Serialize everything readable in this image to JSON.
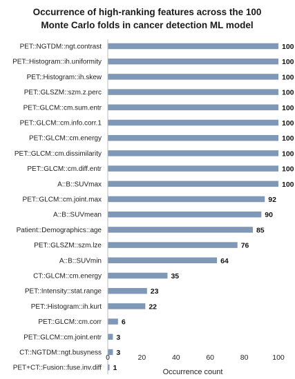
{
  "chart_data": {
    "type": "bar",
    "orientation": "horizontal",
    "title": "Occurrence of high-ranking features across the 100 Monte Carlo folds in cancer detection ML model",
    "title_lines": [
      "Occurrence of high-ranking features across the 100",
      "Monte Carlo folds in cancer detection ML model"
    ],
    "xlabel": "Occurrence count",
    "ylabel": "",
    "xlim": [
      0,
      100
    ],
    "xticks": [
      "0",
      "20",
      "40",
      "60",
      "80",
      "100"
    ],
    "grid": false,
    "bar_color": "#7f98b8",
    "categories": [
      "PET::NGTDM::ngt.contrast",
      "PET::Histogram::ih.uniformity",
      "PET::Histogram::ih.skew",
      "PET::GLSZM::szm.z.perc",
      "PET::GLCM::cm.sum.entr",
      "PET::GLCM::cm.info.corr.1",
      "PET::GLCM::cm.energy",
      "PET::GLCM::cm.dissimilarity",
      "PET::GLCM::cm.diff.entr",
      "A::B::SUVmax",
      "PET::GLCM::cm.joint.max",
      "A::B::SUVmean",
      "Patient::Demographics::age",
      "PET::GLSZM::szm.lze",
      "A::B::SUVmin",
      "CT::GLCM::cm.energy",
      "PET::Intensity::stat.range",
      "PET::Histogram::ih.kurt",
      "PET::GLCM::cm.corr",
      "PET::GLCM::cm.joint.entr",
      "CT::NGTDM::ngt.busyness",
      "PET+CT::Fusion::fuse.inv.diff"
    ],
    "values": [
      100,
      100,
      100,
      100,
      100,
      100,
      100,
      100,
      100,
      100,
      92,
      90,
      85,
      76,
      64,
      35,
      23,
      22,
      6,
      3,
      3,
      1
    ],
    "value_labels": [
      "100",
      "100",
      "100",
      "100",
      "100",
      "100",
      "100",
      "100",
      "100",
      "100",
      "92",
      "90",
      "85",
      "76",
      "64",
      "35",
      "23",
      "22",
      "6",
      "3",
      "3",
      "1"
    ]
  }
}
